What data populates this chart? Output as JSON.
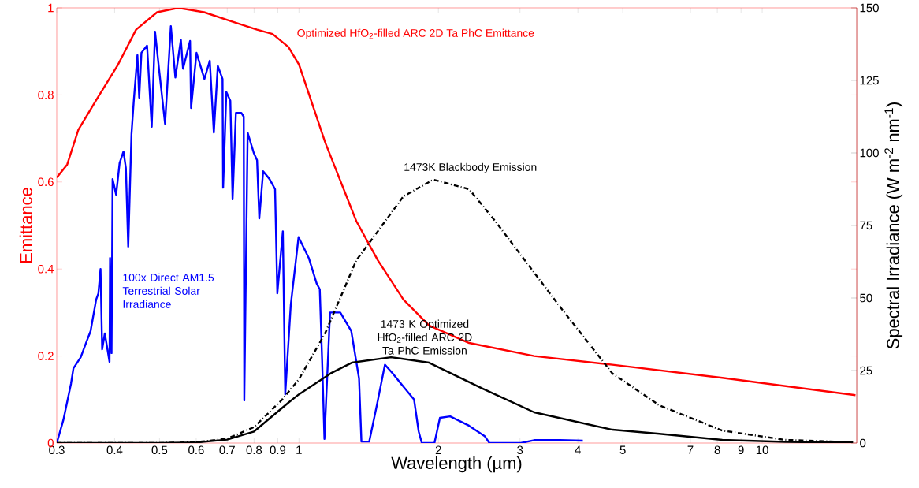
{
  "chart_data": {
    "type": "line",
    "xlabel": "Wavelength (µm)",
    "ylabel": "Emittance",
    "y2label": "Spectral Irradiance (W m$^{-2}$ nm$^{-1}$)",
    "log": "x",
    "xlim": [
      0.3,
      16
    ],
    "ylim": [
      0,
      1
    ],
    "y2lim": [
      0,
      150
    ],
    "xticks": [
      0.3,
      0.4,
      0.5,
      0.6,
      0.7,
      0.8,
      0.9,
      1,
      2,
      3,
      4,
      5,
      7,
      8,
      9,
      10
    ],
    "yticks": [
      0,
      0.2,
      0.4,
      0.6,
      0.8,
      1
    ],
    "y2ticks": [
      0,
      25,
      50,
      75,
      100,
      125,
      150
    ],
    "series": [
      {
        "name": "Optimized HfO$_{2}$-filled ARC 2D Ta PhC Emittance",
        "color": "#ff0000",
        "axis": "y",
        "x": [
          0.3,
          0.316,
          0.334,
          0.366,
          0.407,
          0.445,
          0.494,
          0.549,
          0.624,
          0.711,
          0.812,
          0.877,
          0.949,
          1.0,
          1.14,
          1.33,
          1.48,
          1.68,
          1.91,
          2.33,
          3.22,
          4.75,
          8.2,
          15.9
        ],
        "values": [
          0.61,
          0.64,
          0.72,
          0.79,
          0.87,
          0.95,
          0.99,
          1.0,
          0.99,
          0.97,
          0.95,
          0.94,
          0.91,
          0.87,
          0.69,
          0.51,
          0.42,
          0.33,
          0.27,
          0.23,
          0.2,
          0.18,
          0.15,
          0.11
        ]
      },
      {
        "name": "100x Direct AM1.5 Terrestrial Solar Irradiance",
        "color": "#0000ff",
        "axis": "y2",
        "x": [
          0.3,
          0.31,
          0.322,
          0.326,
          0.338,
          0.348,
          0.355,
          0.365,
          0.369,
          0.373,
          0.376,
          0.381,
          0.39,
          0.391,
          0.394,
          0.396,
          0.403,
          0.41,
          0.418,
          0.423,
          0.428,
          0.435,
          0.44,
          0.448,
          0.452,
          0.457,
          0.47,
          0.481,
          0.489,
          0.5,
          0.514,
          0.529,
          0.541,
          0.556,
          0.562,
          0.582,
          0.585,
          0.601,
          0.625,
          0.642,
          0.655,
          0.668,
          0.684,
          0.686,
          0.697,
          0.711,
          0.719,
          0.731,
          0.751,
          0.76,
          0.762,
          0.775,
          0.799,
          0.812,
          0.821,
          0.837,
          0.864,
          0.888,
          0.898,
          0.923,
          0.934,
          0.96,
          0.998,
          1.05,
          1.092,
          1.109,
          1.122,
          1.135,
          1.167,
          1.228,
          1.297,
          1.348,
          1.364,
          1.418,
          1.474,
          1.533,
          1.594,
          1.677,
          1.772,
          1.813,
          1.842,
          1.961,
          2.015,
          2.12,
          2.328,
          2.517,
          2.577,
          3.012,
          3.219,
          3.66,
          4.1
        ],
        "values": [
          0,
          7.9,
          20.4,
          25.8,
          29.6,
          35,
          38.6,
          49.5,
          51.6,
          60,
          32.3,
          37.8,
          28,
          63.8,
          31,
          91,
          85.6,
          96.5,
          100.5,
          94.8,
          67.7,
          106.5,
          118,
          133.7,
          119,
          134.5,
          137,
          109,
          141.8,
          127.4,
          110,
          143.7,
          126,
          139,
          129,
          138.6,
          115.5,
          134.5,
          125.5,
          131.8,
          107,
          130,
          125.5,
          88,
          121,
          118,
          84,
          113.8,
          113.8,
          112.5,
          14.7,
          107,
          100,
          97.5,
          77.4,
          93.7,
          91,
          87.5,
          51.6,
          73,
          16.8,
          47.5,
          71,
          63.8,
          55,
          53,
          28.5,
          1.4,
          45,
          45,
          38.6,
          22.3,
          0.5,
          0.5,
          13.3,
          27,
          24,
          19.6,
          15,
          4,
          0,
          0,
          8.7,
          9.2,
          6,
          2.4,
          0,
          0,
          1,
          1,
          0.8
        ]
      },
      {
        "name": "1473K Blackbody Emission",
        "color": "#000000",
        "axis": "y2",
        "line_style": "dashdot",
        "x": [
          0.3,
          0.5,
          0.6,
          0.7,
          0.8,
          0.92,
          1.0,
          1.14,
          1.33,
          1.48,
          1.68,
          1.95,
          2.33,
          2.65,
          3.66,
          4.75,
          6.0,
          8.2,
          11.2,
          15.7
        ],
        "values": [
          0,
          0,
          0.3,
          1.5,
          5.5,
          15,
          22,
          38,
          63,
          73,
          85,
          90.8,
          87.5,
          76.6,
          47,
          24,
          13,
          4.3,
          1.1,
          0.3
        ]
      },
      {
        "name": "1473 K Optimized HfO$_{2}$-filled ARC 2D Ta PhC Emission",
        "color": "#000000",
        "axis": "y2",
        "x": [
          0.3,
          0.5,
          0.6,
          0.7,
          0.8,
          0.95,
          1.0,
          1.17,
          1.3,
          1.58,
          1.91,
          2.49,
          3.22,
          4.75,
          6.0,
          8.2,
          11.2,
          15.7
        ],
        "values": [
          0,
          0,
          0.2,
          1.2,
          4,
          14,
          16.8,
          24,
          27.7,
          29.6,
          27.7,
          18.8,
          10.6,
          4.6,
          3.2,
          1.1,
          0.4,
          0.2
        ]
      }
    ]
  }
}
